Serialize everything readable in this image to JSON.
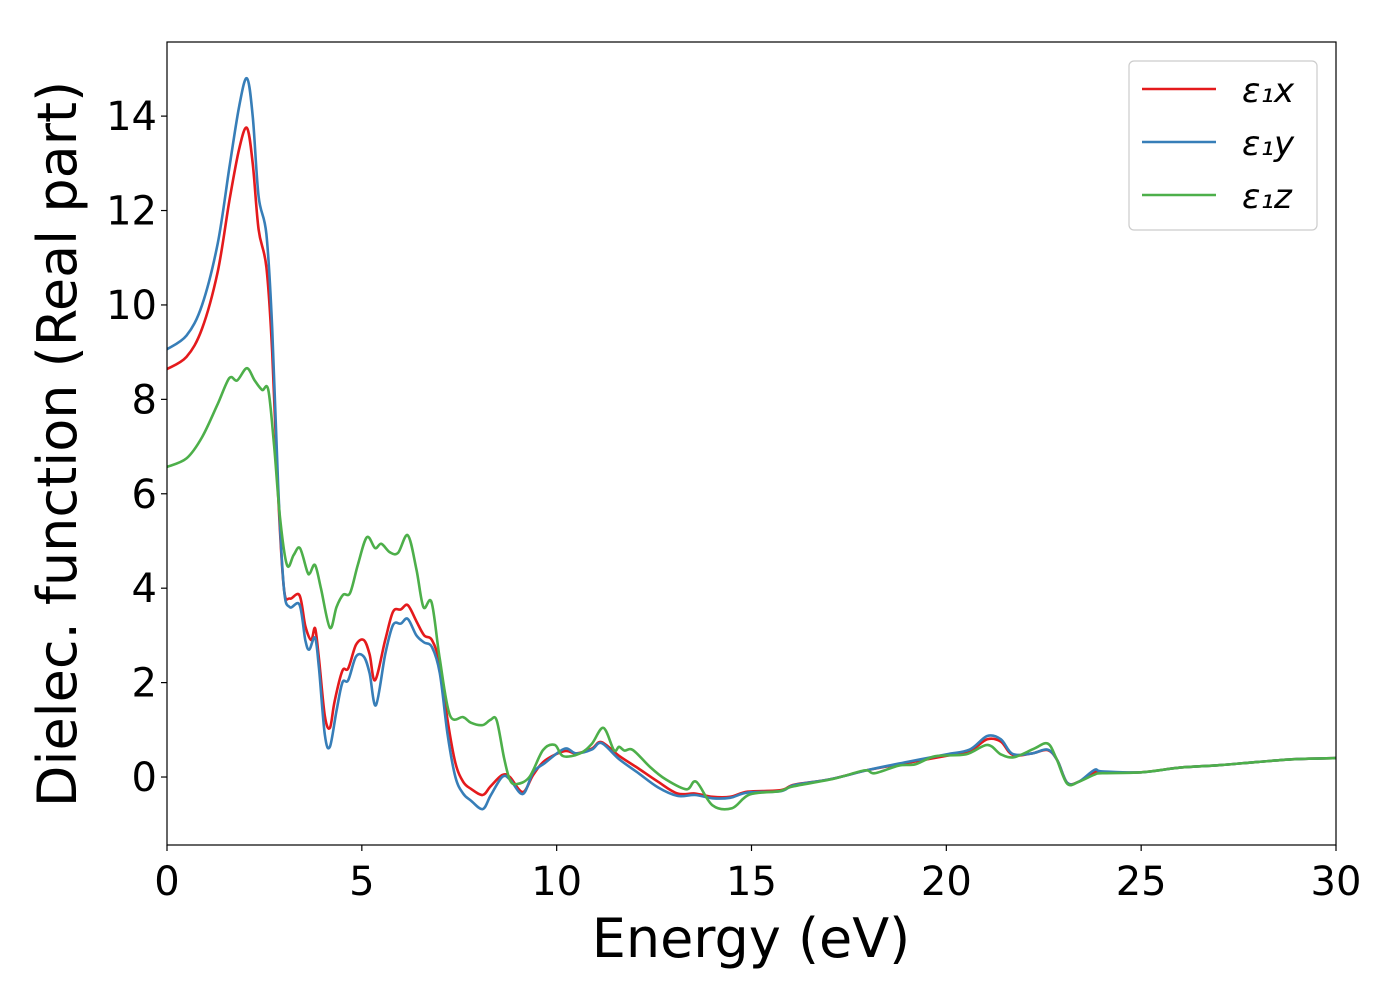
{
  "chart_data": {
    "type": "line",
    "title": "",
    "xlabel": "Energy (eV)",
    "ylabel": "Dielec. function (Real part)",
    "xlim": [
      0,
      30
    ],
    "ylim": [
      -1.44,
      15.57
    ],
    "xticks": [
      0,
      5,
      10,
      15,
      20,
      25,
      30
    ],
    "yticks": [
      0,
      2,
      4,
      6,
      8,
      10,
      12,
      14
    ],
    "grid": false,
    "legend_position": "top-right",
    "series": [
      {
        "name": "ε₁x",
        "color": "#e41a1c",
        "points": [
          [
            0,
            8.64
          ],
          [
            0.5,
            8.9
          ],
          [
            0.9,
            9.5
          ],
          [
            1.3,
            10.7
          ],
          [
            1.6,
            12.2
          ],
          [
            1.85,
            13.3
          ],
          [
            2.05,
            13.75
          ],
          [
            2.2,
            13.0
          ],
          [
            2.35,
            11.6
          ],
          [
            2.55,
            10.8
          ],
          [
            2.7,
            9.0
          ],
          [
            2.85,
            6.0
          ],
          [
            3.0,
            4.0
          ],
          [
            3.15,
            3.78
          ],
          [
            3.4,
            3.85
          ],
          [
            3.55,
            3.2
          ],
          [
            3.7,
            2.9
          ],
          [
            3.8,
            3.15
          ],
          [
            3.9,
            2.5
          ],
          [
            4.05,
            1.3
          ],
          [
            4.18,
            1.04
          ],
          [
            4.3,
            1.6
          ],
          [
            4.5,
            2.25
          ],
          [
            4.65,
            2.3
          ],
          [
            4.85,
            2.8
          ],
          [
            5.05,
            2.9
          ],
          [
            5.2,
            2.6
          ],
          [
            5.34,
            2.05
          ],
          [
            5.6,
            2.9
          ],
          [
            5.8,
            3.5
          ],
          [
            6.0,
            3.55
          ],
          [
            6.18,
            3.64
          ],
          [
            6.4,
            3.3
          ],
          [
            6.6,
            3.0
          ],
          [
            6.8,
            2.9
          ],
          [
            7.0,
            2.4
          ],
          [
            7.2,
            1.2
          ],
          [
            7.4,
            0.3
          ],
          [
            7.6,
            -0.1
          ],
          [
            7.8,
            -0.25
          ],
          [
            8.1,
            -0.38
          ],
          [
            8.3,
            -0.2
          ],
          [
            8.6,
            0.04
          ],
          [
            8.8,
            0.0
          ],
          [
            9.13,
            -0.32
          ],
          [
            9.4,
            0.05
          ],
          [
            9.7,
            0.35
          ],
          [
            10.2,
            0.55
          ],
          [
            10.5,
            0.5
          ],
          [
            10.9,
            0.6
          ],
          [
            11.15,
            0.74
          ],
          [
            11.6,
            0.45
          ],
          [
            12.1,
            0.18
          ],
          [
            12.6,
            -0.1
          ],
          [
            13.1,
            -0.35
          ],
          [
            13.55,
            -0.35
          ],
          [
            14.0,
            -0.42
          ],
          [
            14.45,
            -0.42
          ],
          [
            14.9,
            -0.31
          ],
          [
            15.75,
            -0.28
          ],
          [
            16.1,
            -0.16
          ],
          [
            17,
            -0.05
          ],
          [
            18,
            0.15
          ],
          [
            19,
            0.3
          ],
          [
            20,
            0.45
          ],
          [
            20.6,
            0.55
          ],
          [
            21.05,
            0.8
          ],
          [
            21.4,
            0.75
          ],
          [
            21.7,
            0.47
          ],
          [
            22.2,
            0.5
          ],
          [
            22.6,
            0.57
          ],
          [
            22.85,
            0.35
          ],
          [
            23.1,
            -0.12
          ],
          [
            23.4,
            -0.1
          ],
          [
            23.8,
            0.1
          ],
          [
            24,
            0.1
          ],
          [
            25,
            0.1
          ],
          [
            26,
            0.2
          ],
          [
            27,
            0.25
          ],
          [
            28,
            0.32
          ],
          [
            29,
            0.38
          ],
          [
            30,
            0.4
          ]
        ]
      },
      {
        "name": "ε₁y",
        "color": "#377eb8",
        "points": [
          [
            0,
            9.06
          ],
          [
            0.5,
            9.35
          ],
          [
            0.9,
            10.0
          ],
          [
            1.3,
            11.3
          ],
          [
            1.6,
            12.9
          ],
          [
            1.85,
            14.2
          ],
          [
            2.05,
            14.8
          ],
          [
            2.2,
            14.0
          ],
          [
            2.35,
            12.3
          ],
          [
            2.55,
            11.5
          ],
          [
            2.7,
            9.5
          ],
          [
            2.85,
            6.2
          ],
          [
            3.0,
            4.0
          ],
          [
            3.15,
            3.6
          ],
          [
            3.4,
            3.65
          ],
          [
            3.55,
            2.9
          ],
          [
            3.65,
            2.7
          ],
          [
            3.8,
            2.95
          ],
          [
            3.9,
            2.3
          ],
          [
            4.05,
            0.9
          ],
          [
            4.18,
            0.64
          ],
          [
            4.35,
            1.4
          ],
          [
            4.5,
            2.0
          ],
          [
            4.65,
            2.05
          ],
          [
            4.85,
            2.55
          ],
          [
            5.05,
            2.55
          ],
          [
            5.2,
            2.2
          ],
          [
            5.36,
            1.52
          ],
          [
            5.6,
            2.6
          ],
          [
            5.8,
            3.22
          ],
          [
            6.0,
            3.25
          ],
          [
            6.18,
            3.35
          ],
          [
            6.4,
            3.0
          ],
          [
            6.6,
            2.85
          ],
          [
            6.8,
            2.75
          ],
          [
            7.0,
            2.2
          ],
          [
            7.2,
            0.9
          ],
          [
            7.4,
            0.0
          ],
          [
            7.6,
            -0.35
          ],
          [
            7.8,
            -0.5
          ],
          [
            8.1,
            -0.68
          ],
          [
            8.3,
            -0.4
          ],
          [
            8.6,
            0.0
          ],
          [
            8.8,
            -0.05
          ],
          [
            9.13,
            -0.36
          ],
          [
            9.4,
            0.1
          ],
          [
            9.7,
            0.3
          ],
          [
            10.2,
            0.6
          ],
          [
            10.5,
            0.5
          ],
          [
            10.9,
            0.58
          ],
          [
            11.15,
            0.72
          ],
          [
            11.6,
            0.38
          ],
          [
            12.1,
            0.08
          ],
          [
            12.6,
            -0.22
          ],
          [
            13.1,
            -0.4
          ],
          [
            13.55,
            -0.38
          ],
          [
            14.0,
            -0.45
          ],
          [
            14.45,
            -0.44
          ],
          [
            14.9,
            -0.33
          ],
          [
            15.75,
            -0.3
          ],
          [
            16.1,
            -0.17
          ],
          [
            17,
            -0.05
          ],
          [
            18,
            0.15
          ],
          [
            19,
            0.32
          ],
          [
            20,
            0.48
          ],
          [
            20.6,
            0.58
          ],
          [
            21.05,
            0.87
          ],
          [
            21.4,
            0.8
          ],
          [
            21.7,
            0.49
          ],
          [
            22.2,
            0.5
          ],
          [
            22.6,
            0.58
          ],
          [
            22.85,
            0.35
          ],
          [
            23.1,
            -0.12
          ],
          [
            23.4,
            -0.1
          ],
          [
            23.8,
            0.15
          ],
          [
            24,
            0.12
          ],
          [
            25,
            0.1
          ],
          [
            26,
            0.2
          ],
          [
            27,
            0.25
          ],
          [
            28,
            0.32
          ],
          [
            29,
            0.38
          ],
          [
            30,
            0.4
          ]
        ]
      },
      {
        "name": "ε₁z",
        "color": "#4daf4a",
        "points": [
          [
            0,
            6.57
          ],
          [
            0.5,
            6.75
          ],
          [
            0.9,
            7.2
          ],
          [
            1.3,
            7.9
          ],
          [
            1.6,
            8.45
          ],
          [
            1.8,
            8.4
          ],
          [
            2.05,
            8.66
          ],
          [
            2.25,
            8.4
          ],
          [
            2.44,
            8.2
          ],
          [
            2.6,
            8.2
          ],
          [
            2.75,
            7.0
          ],
          [
            2.9,
            5.5
          ],
          [
            3.08,
            4.49
          ],
          [
            3.25,
            4.7
          ],
          [
            3.41,
            4.85
          ],
          [
            3.6,
            4.35
          ],
          [
            3.67,
            4.32
          ],
          [
            3.8,
            4.49
          ],
          [
            3.95,
            4.0
          ],
          [
            4.18,
            3.16
          ],
          [
            4.35,
            3.6
          ],
          [
            4.52,
            3.86
          ],
          [
            4.7,
            3.9
          ],
          [
            4.9,
            4.5
          ],
          [
            5.13,
            5.08
          ],
          [
            5.34,
            4.85
          ],
          [
            5.5,
            4.94
          ],
          [
            5.72,
            4.76
          ],
          [
            5.93,
            4.75
          ],
          [
            6.18,
            5.12
          ],
          [
            6.4,
            4.4
          ],
          [
            6.58,
            3.6
          ],
          [
            6.79,
            3.7
          ],
          [
            7.0,
            2.5
          ],
          [
            7.26,
            1.31
          ],
          [
            7.6,
            1.27
          ],
          [
            7.8,
            1.15
          ],
          [
            8.1,
            1.1
          ],
          [
            8.3,
            1.21
          ],
          [
            8.46,
            1.2
          ],
          [
            8.65,
            0.4
          ],
          [
            8.8,
            -0.06
          ],
          [
            8.97,
            -0.15
          ],
          [
            9.3,
            0.0
          ],
          [
            9.65,
            0.57
          ],
          [
            9.95,
            0.68
          ],
          [
            10.17,
            0.44
          ],
          [
            10.6,
            0.5
          ],
          [
            10.9,
            0.7
          ],
          [
            11.2,
            1.04
          ],
          [
            11.47,
            0.57
          ],
          [
            11.6,
            0.64
          ],
          [
            11.74,
            0.56
          ],
          [
            11.96,
            0.57
          ],
          [
            12.4,
            0.21
          ],
          [
            12.8,
            -0.05
          ],
          [
            13.33,
            -0.26
          ],
          [
            13.58,
            -0.1
          ],
          [
            14.0,
            -0.6
          ],
          [
            14.5,
            -0.66
          ],
          [
            14.95,
            -0.37
          ],
          [
            15.72,
            -0.3
          ],
          [
            16.06,
            -0.2
          ],
          [
            17.1,
            -0.04
          ],
          [
            17.9,
            0.14
          ],
          [
            18.16,
            0.08
          ],
          [
            18.77,
            0.24
          ],
          [
            19.2,
            0.27
          ],
          [
            19.72,
            0.44
          ],
          [
            20.5,
            0.48
          ],
          [
            21.05,
            0.68
          ],
          [
            21.4,
            0.48
          ],
          [
            21.74,
            0.42
          ],
          [
            22.25,
            0.6
          ],
          [
            22.6,
            0.71
          ],
          [
            22.82,
            0.4
          ],
          [
            23.1,
            -0.14
          ],
          [
            23.4,
            -0.1
          ],
          [
            23.8,
            0.05
          ],
          [
            24,
            0.08
          ],
          [
            25,
            0.1
          ],
          [
            26,
            0.2
          ],
          [
            27,
            0.25
          ],
          [
            28,
            0.32
          ],
          [
            29,
            0.38
          ],
          [
            30,
            0.4
          ]
        ]
      }
    ]
  }
}
